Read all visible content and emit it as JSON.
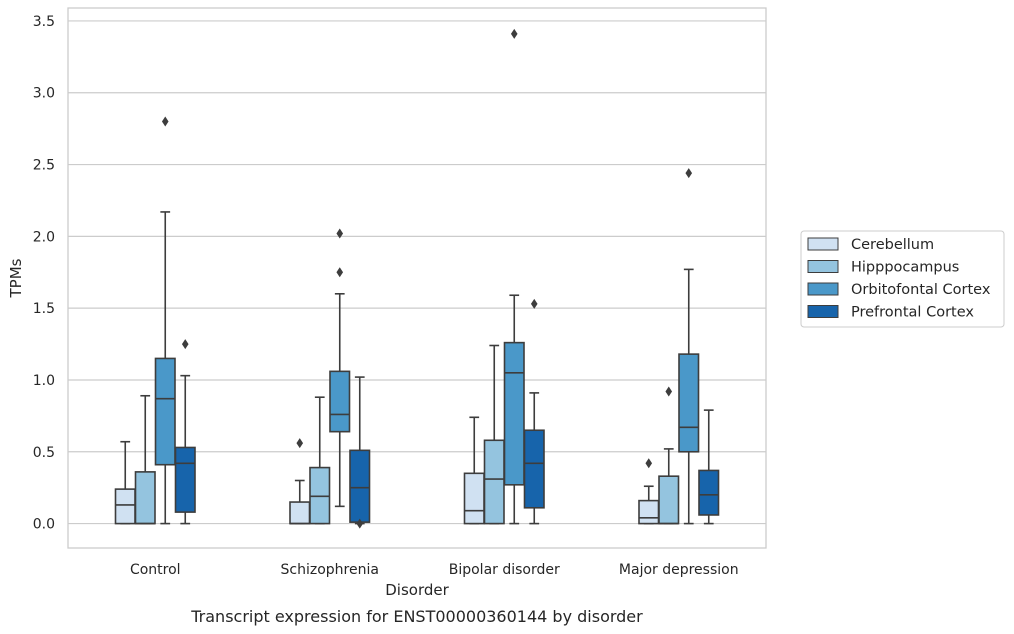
{
  "caption": "Transcript expression for ENST00000360144 by disorder",
  "chart_data": {
    "type": "box",
    "xlabel": "Disorder",
    "ylabel": "TPMs",
    "ylim": [
      -0.17,
      3.59
    ],
    "yticks": [
      "0.0",
      "0.5",
      "1.0",
      "1.5",
      "2.0",
      "2.5",
      "3.0",
      "3.5"
    ],
    "grid": true,
    "legend_position": "right",
    "categories": [
      "Control",
      "Schizophrenia",
      "Bipolar disorder",
      "Major depression"
    ],
    "series": [
      {
        "name": "Cerebellum",
        "color": "#d0e1f2",
        "boxes": [
          {
            "whislo": 0.0,
            "q1": 0.0,
            "med": 0.13,
            "q3": 0.24,
            "whishi": 0.57,
            "fliers": []
          },
          {
            "whislo": 0.0,
            "q1": 0.0,
            "med": 0.0,
            "q3": 0.15,
            "whishi": 0.3,
            "fliers": [
              0.56
            ]
          },
          {
            "whislo": 0.0,
            "q1": 0.0,
            "med": 0.09,
            "q3": 0.35,
            "whishi": 0.74,
            "fliers": []
          },
          {
            "whislo": 0.0,
            "q1": 0.0,
            "med": 0.04,
            "q3": 0.16,
            "whishi": 0.26,
            "fliers": [
              0.42
            ]
          }
        ]
      },
      {
        "name": "Hipppocampus",
        "color": "#94c4df",
        "boxes": [
          {
            "whislo": 0.0,
            "q1": 0.0,
            "med": 0.0,
            "q3": 0.36,
            "whishi": 0.89,
            "fliers": []
          },
          {
            "whislo": 0.0,
            "q1": 0.0,
            "med": 0.19,
            "q3": 0.39,
            "whishi": 0.88,
            "fliers": []
          },
          {
            "whislo": 0.0,
            "q1": 0.0,
            "med": 0.31,
            "q3": 0.58,
            "whishi": 1.24,
            "fliers": []
          },
          {
            "whislo": 0.0,
            "q1": 0.0,
            "med": 0.0,
            "q3": 0.33,
            "whishi": 0.52,
            "fliers": [
              0.92
            ]
          }
        ]
      },
      {
        "name": "Orbitofontal Cortex",
        "color": "#4a98c9",
        "boxes": [
          {
            "whislo": 0.0,
            "q1": 0.41,
            "med": 0.87,
            "q3": 1.15,
            "whishi": 2.17,
            "fliers": [
              2.8
            ]
          },
          {
            "whislo": 0.12,
            "q1": 0.64,
            "med": 0.76,
            "q3": 1.06,
            "whishi": 1.6,
            "fliers": [
              1.75,
              2.02
            ]
          },
          {
            "whislo": 0.0,
            "q1": 0.27,
            "med": 1.05,
            "q3": 1.26,
            "whishi": 1.59,
            "fliers": [
              3.41
            ]
          },
          {
            "whislo": 0.0,
            "q1": 0.5,
            "med": 0.67,
            "q3": 1.18,
            "whishi": 1.77,
            "fliers": [
              2.44
            ]
          }
        ]
      },
      {
        "name": "Prefrontal Cortex",
        "color": "#1764ab",
        "boxes": [
          {
            "whislo": 0.0,
            "q1": 0.08,
            "med": 0.42,
            "q3": 0.53,
            "whishi": 1.03,
            "fliers": [
              1.25
            ]
          },
          {
            "whislo": 0.0,
            "q1": 0.01,
            "med": 0.25,
            "q3": 0.51,
            "whishi": 1.02,
            "fliers": [
              0.0
            ]
          },
          {
            "whislo": 0.0,
            "q1": 0.11,
            "med": 0.42,
            "q3": 0.65,
            "whishi": 0.91,
            "fliers": [
              1.53
            ]
          },
          {
            "whislo": 0.0,
            "q1": 0.06,
            "med": 0.2,
            "q3": 0.37,
            "whishi": 0.79,
            "fliers": []
          }
        ]
      }
    ]
  }
}
